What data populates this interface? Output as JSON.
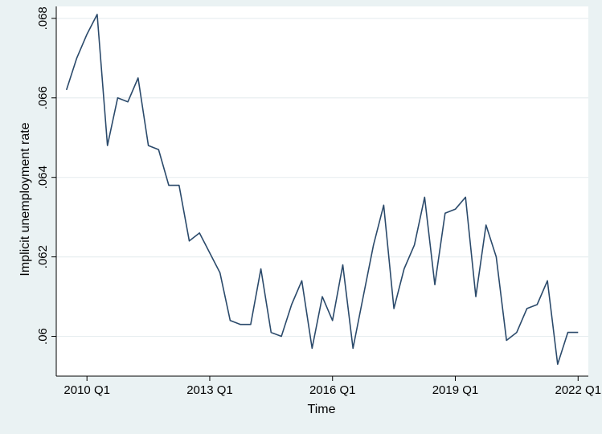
{
  "chart_data": {
    "type": "line",
    "title": "",
    "xlabel": "Time",
    "ylabel": "Implicit unemployment rate",
    "x_ticks": [
      "2010 Q1",
      "2013 Q1",
      "2016 Q1",
      "2019 Q1",
      "2022 Q1"
    ],
    "y_ticks": [
      ".06",
      ".062",
      ".064",
      ".066",
      ".068"
    ],
    "y_tick_values": [
      0.06,
      0.062,
      0.064,
      0.066,
      0.068
    ],
    "xlim": [
      "2009 Q2",
      "2022 Q2"
    ],
    "ylim": [
      0.059,
      0.0683
    ],
    "grid": "horizontal",
    "colors": {
      "line": "#2b4a6b",
      "background": "#eaf2f3",
      "plot_background": "#ffffff",
      "grid": "#e8eef0"
    },
    "series": [
      {
        "x": [
          "2009 Q3",
          "2009 Q4",
          "2010 Q1",
          "2010 Q2",
          "2010 Q3",
          "2010 Q4",
          "2011 Q1",
          "2011 Q2",
          "2011 Q3",
          "2011 Q4",
          "2012 Q1",
          "2012 Q2",
          "2012 Q3",
          "2012 Q4",
          "2013 Q1",
          "2013 Q2",
          "2013 Q3",
          "2013 Q4",
          "2014 Q1",
          "2014 Q2",
          "2014 Q3",
          "2014 Q4",
          "2015 Q1",
          "2015 Q2",
          "2015 Q3",
          "2015 Q4",
          "2016 Q1",
          "2016 Q2",
          "2016 Q3",
          "2016 Q4",
          "2017 Q1",
          "2017 Q2",
          "2017 Q3",
          "2017 Q4",
          "2018 Q1",
          "2018 Q2",
          "2018 Q3",
          "2018 Q4",
          "2019 Q1",
          "2019 Q2",
          "2019 Q3",
          "2019 Q4",
          "2020 Q1",
          "2020 Q2",
          "2020 Q3",
          "2020 Q4",
          "2021 Q1",
          "2021 Q2",
          "2021 Q3",
          "2021 Q4",
          "2022 Q1"
        ],
        "values": [
          0.0662,
          0.067,
          0.0676,
          0.0681,
          0.0648,
          0.066,
          0.0659,
          0.0665,
          0.0648,
          0.0647,
          0.0638,
          0.0638,
          0.0624,
          0.0626,
          0.0621,
          0.0616,
          0.0604,
          0.0603,
          0.0603,
          0.0617,
          0.0601,
          0.06,
          0.0608,
          0.0614,
          0.0597,
          0.061,
          0.0604,
          0.0618,
          0.0597,
          0.061,
          0.0623,
          0.0633,
          0.0607,
          0.0617,
          0.0623,
          0.0635,
          0.0613,
          0.0631,
          0.0632,
          0.0635,
          0.061,
          0.0628,
          0.062,
          0.0599,
          0.0601,
          0.0607,
          0.0608,
          0.0614,
          0.0593,
          0.0601,
          0.0601
        ]
      }
    ]
  }
}
